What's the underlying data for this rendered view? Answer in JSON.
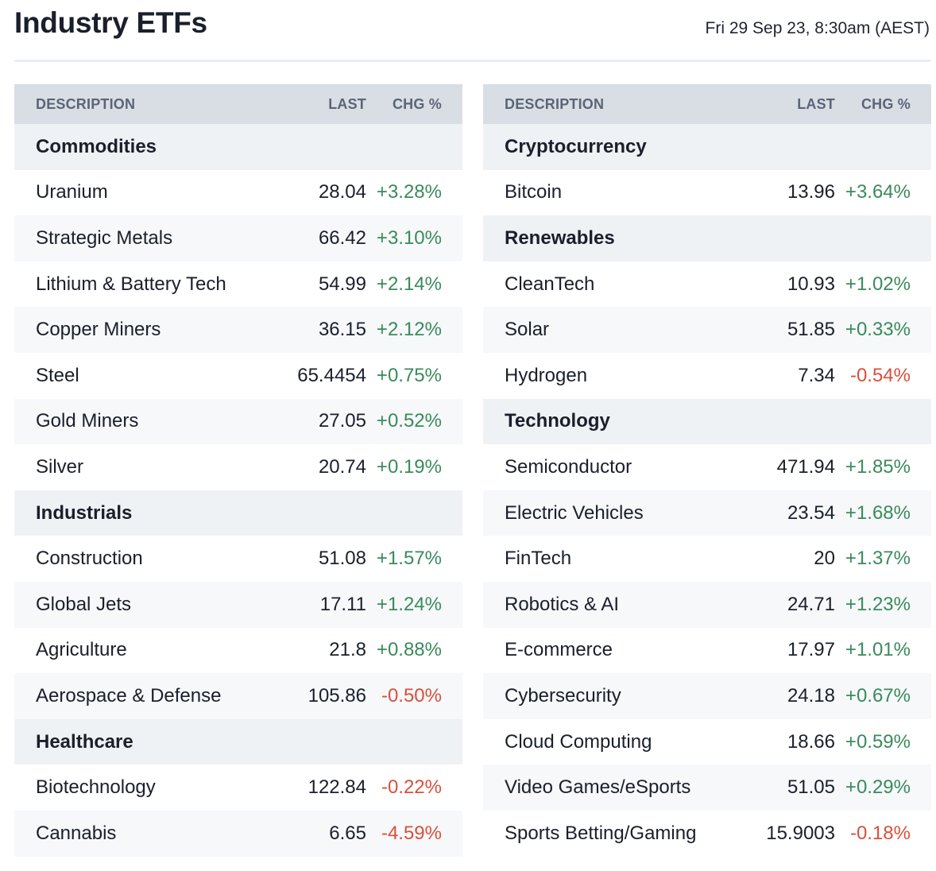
{
  "header": {
    "title": "Industry ETFs",
    "timestamp": "Fri 29 Sep 23, 8:30am (AEST)"
  },
  "columns": {
    "description": "DESCRIPTION",
    "last": "LAST",
    "chg": "CHG %"
  },
  "colors": {
    "positive": "#3a8a5c",
    "negative": "#d9503a",
    "header_bg": "#d9dee5",
    "group_bg": "#eff2f5"
  },
  "left_table": {
    "groups": [
      {
        "name": "Commodities",
        "rows": [
          {
            "name": "Uranium",
            "last": "28.04",
            "chg": "+3.28%"
          },
          {
            "name": "Strategic Metals",
            "last": "66.42",
            "chg": "+3.10%"
          },
          {
            "name": "Lithium & Battery Tech",
            "last": "54.99",
            "chg": "+2.14%"
          },
          {
            "name": "Copper Miners",
            "last": "36.15",
            "chg": "+2.12%"
          },
          {
            "name": "Steel",
            "last": "65.4454",
            "chg": "+0.75%"
          },
          {
            "name": "Gold Miners",
            "last": "27.05",
            "chg": "+0.52%"
          },
          {
            "name": "Silver",
            "last": "20.74",
            "chg": "+0.19%"
          }
        ]
      },
      {
        "name": "Industrials",
        "rows": [
          {
            "name": "Construction",
            "last": "51.08",
            "chg": "+1.57%"
          },
          {
            "name": "Global Jets",
            "last": "17.11",
            "chg": "+1.24%"
          },
          {
            "name": "Agriculture",
            "last": "21.8",
            "chg": "+0.88%"
          },
          {
            "name": "Aerospace & Defense",
            "last": "105.86",
            "chg": "-0.50%"
          }
        ]
      },
      {
        "name": "Healthcare",
        "rows": [
          {
            "name": "Biotechnology",
            "last": "122.84",
            "chg": "-0.22%"
          },
          {
            "name": "Cannabis",
            "last": "6.65",
            "chg": "-4.59%"
          }
        ]
      }
    ]
  },
  "right_table": {
    "groups": [
      {
        "name": "Cryptocurrency",
        "rows": [
          {
            "name": "Bitcoin",
            "last": "13.96",
            "chg": "+3.64%"
          }
        ]
      },
      {
        "name": "Renewables",
        "rows": [
          {
            "name": "CleanTech",
            "last": "10.93",
            "chg": "+1.02%"
          },
          {
            "name": "Solar",
            "last": "51.85",
            "chg": "+0.33%"
          },
          {
            "name": "Hydrogen",
            "last": "7.34",
            "chg": "-0.54%"
          }
        ]
      },
      {
        "name": "Technology",
        "rows": [
          {
            "name": "Semiconductor",
            "last": "471.94",
            "chg": "+1.85%"
          },
          {
            "name": "Electric Vehicles",
            "last": "23.54",
            "chg": "+1.68%"
          },
          {
            "name": "FinTech",
            "last": "20",
            "chg": "+1.37%"
          },
          {
            "name": "Robotics & AI",
            "last": "24.71",
            "chg": "+1.23%"
          },
          {
            "name": "E-commerce",
            "last": "17.97",
            "chg": "+1.01%"
          },
          {
            "name": "Cybersecurity",
            "last": "24.18",
            "chg": "+0.67%"
          },
          {
            "name": "Cloud Computing",
            "last": "18.66",
            "chg": "+0.59%"
          },
          {
            "name": "Video Games/eSports",
            "last": "51.05",
            "chg": "+0.29%"
          },
          {
            "name": "Sports Betting/Gaming",
            "last": "15.9003",
            "chg": "-0.18%"
          }
        ]
      }
    ]
  }
}
